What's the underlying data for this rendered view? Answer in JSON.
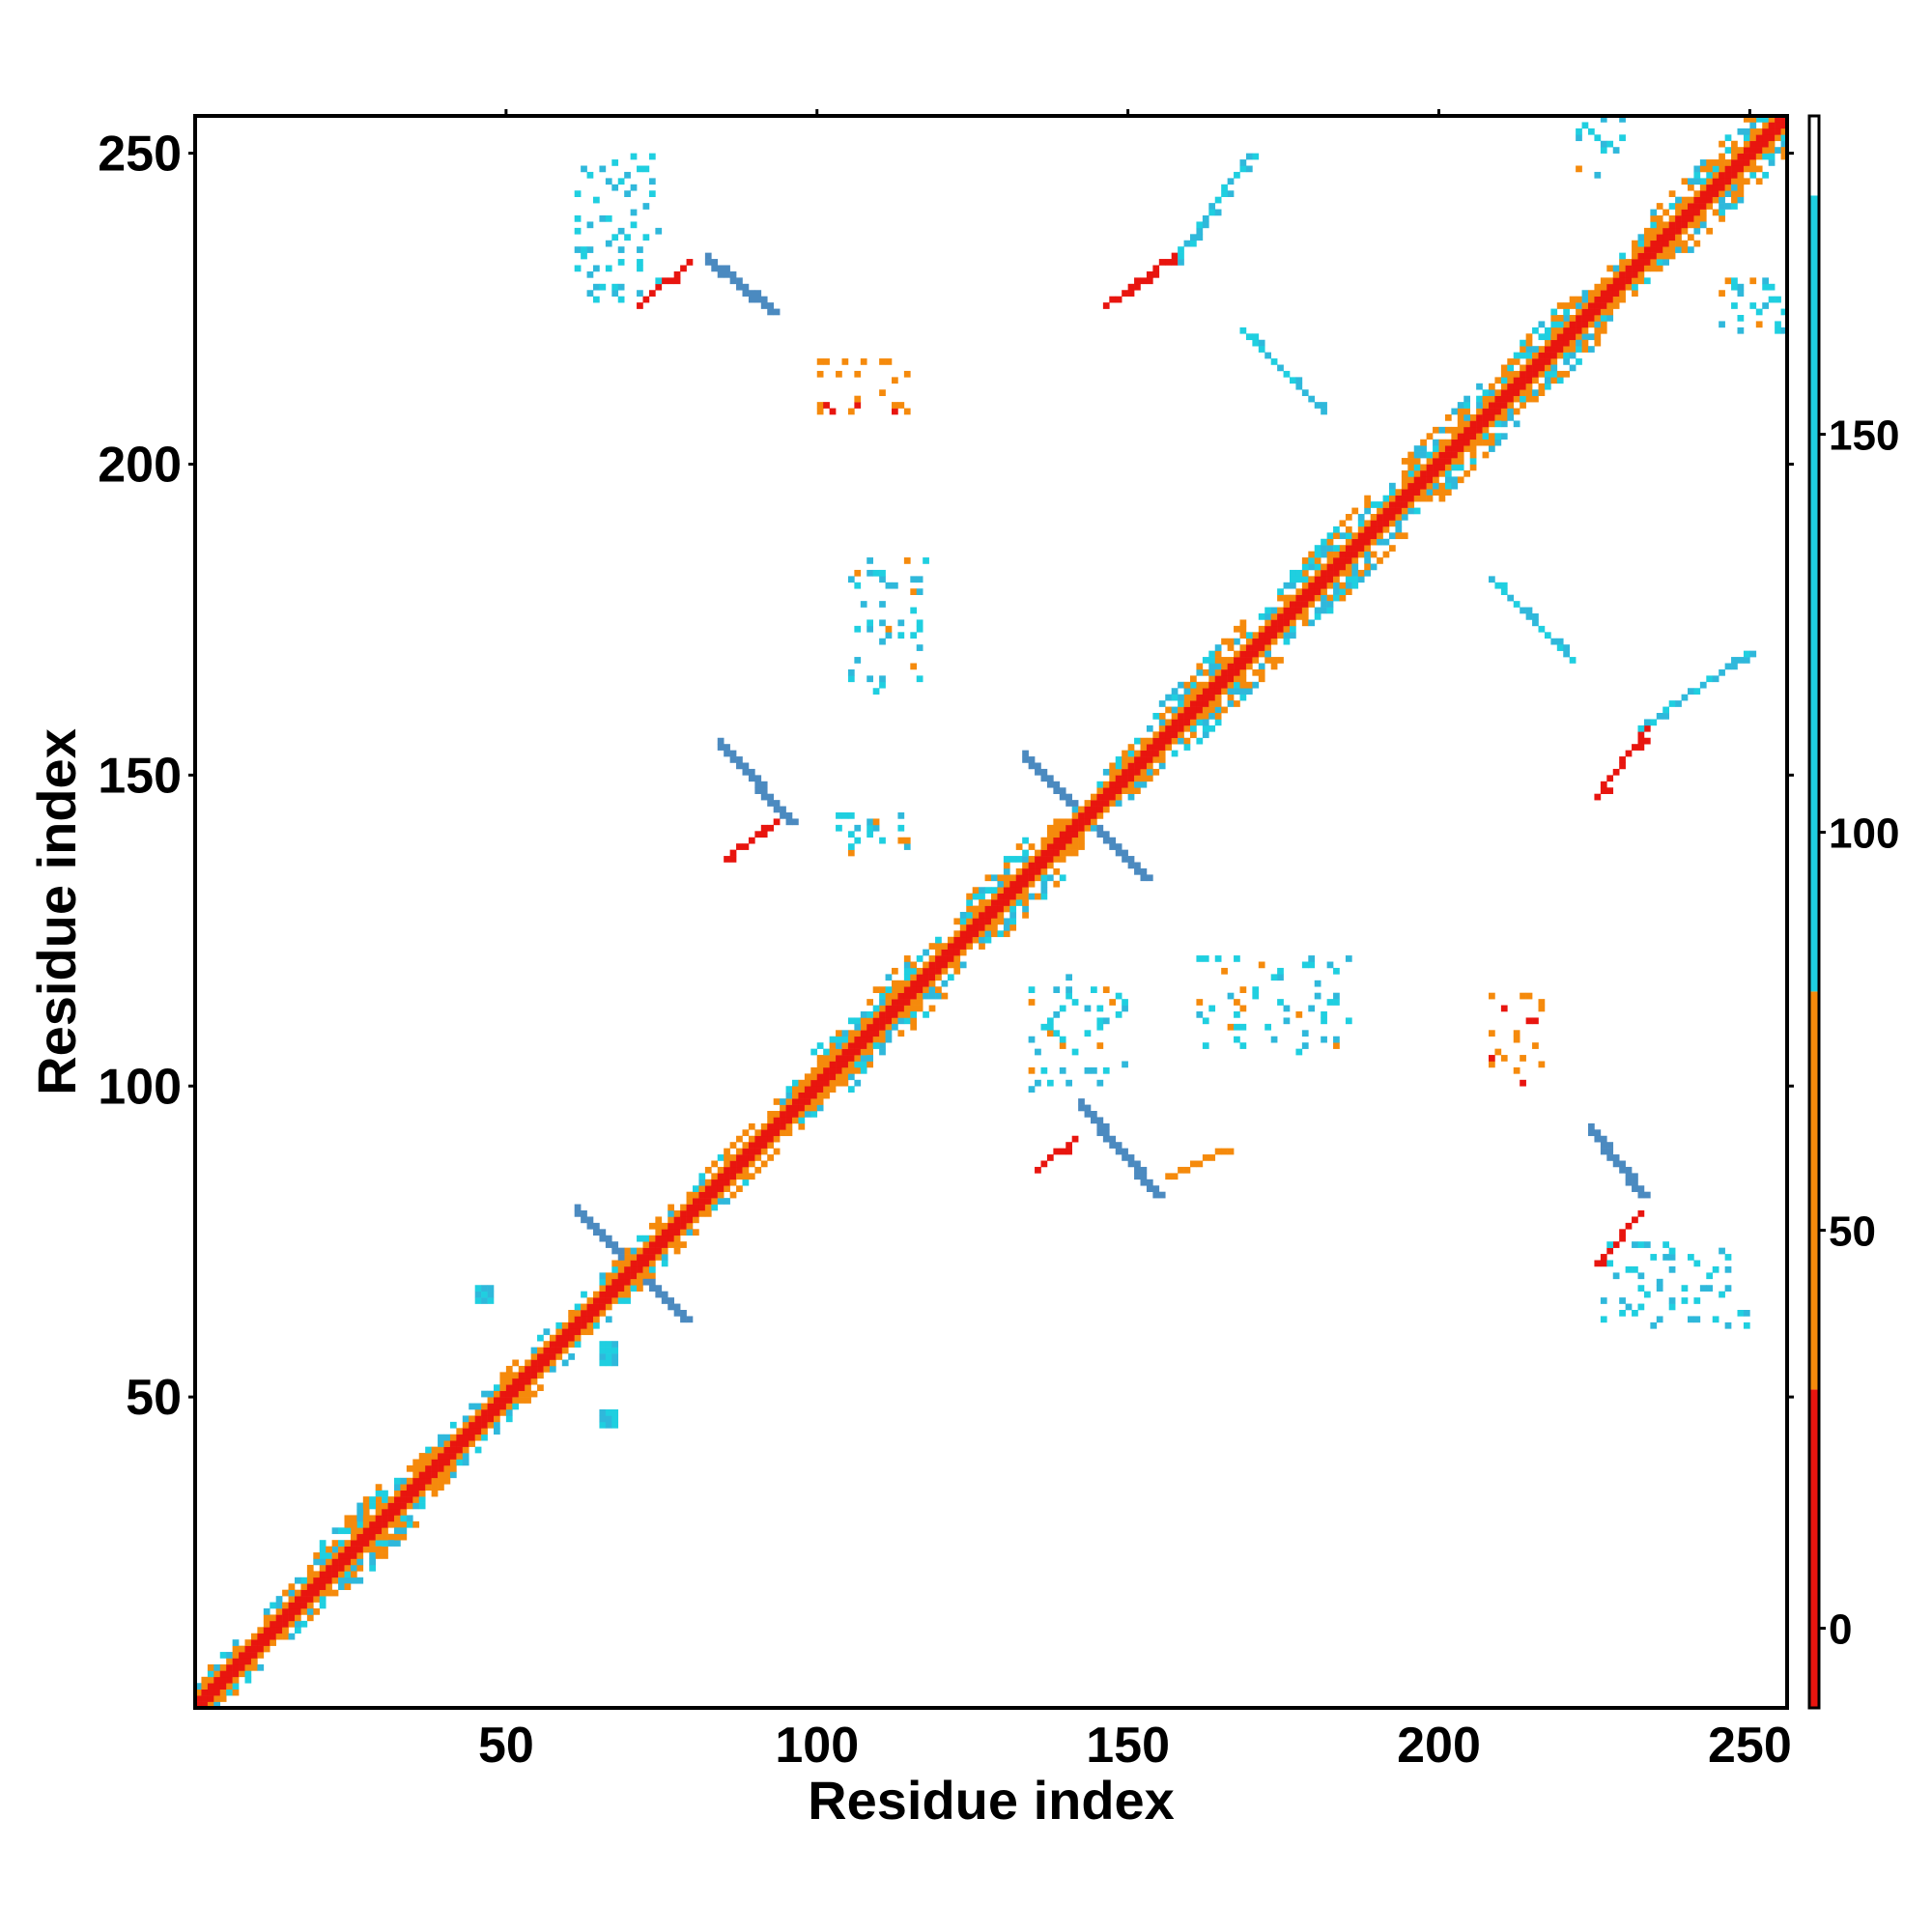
{
  "chart_data": {
    "type": "heatmap",
    "title": "",
    "xlabel": "Residue index",
    "ylabel": "Residue index",
    "xlim": [
      0,
      256
    ],
    "ylim": [
      0,
      256
    ],
    "x_ticks": [
      50,
      100,
      150,
      200,
      250
    ],
    "y_ticks": [
      50,
      100,
      150,
      200,
      250
    ],
    "grid": false,
    "symmetric": true,
    "colorbar": {
      "range": [
        -10,
        190
      ],
      "ticks": [
        0,
        50,
        100,
        150
      ],
      "segments": [
        {
          "from": -10,
          "to": 30,
          "color": "#e8150f"
        },
        {
          "from": 30,
          "to": 80,
          "color": "#f58a0c"
        },
        {
          "from": 80,
          "to": 180,
          "color": "#1fcfe0"
        },
        {
          "from": 180,
          "to": 190,
          "color": "#ffffff"
        }
      ]
    },
    "diagonal": {
      "from": 1,
      "to": 256
    },
    "lower_triangle_features": [
      {
        "kind": "block",
        "x": [
          46,
          48
        ],
        "y": [
          66,
          68
        ],
        "value": 115
      },
      {
        "kind": "block",
        "x": [
          66,
          68
        ],
        "y": [
          46,
          48
        ],
        "value": 115
      },
      {
        "kind": "block",
        "x": [
          66,
          68
        ],
        "y": [
          56,
          59
        ],
        "value": 110
      },
      {
        "kind": "strand_pair",
        "start": [
          62,
          80
        ],
        "end": [
          79,
          63
        ],
        "value": 160
      },
      {
        "kind": "strand_pair",
        "start": [
          85,
          155
        ],
        "end": [
          96,
          143
        ],
        "value": 160
      },
      {
        "kind": "strand_pair",
        "start": [
          143,
          97
        ],
        "end": [
          155,
          83
        ],
        "value": 160
      },
      {
        "kind": "strand_pair",
        "start": [
          134,
          153
        ],
        "end": [
          153,
          134
        ],
        "value": 160
      },
      {
        "kind": "strand_pair",
        "start": [
          225,
          93
        ],
        "end": [
          233,
          83
        ],
        "value": 160
      },
      {
        "kind": "diag_line",
        "start": [
          86,
          137
        ],
        "end": [
          95,
          144
        ],
        "value": 15
      },
      {
        "kind": "diag_line",
        "start": [
          136,
          87
        ],
        "end": [
          142,
          92
        ],
        "value": 15
      },
      {
        "kind": "diag_line",
        "start": [
          226,
          72
        ],
        "end": [
          233,
          80
        ],
        "value": 10
      },
      {
        "kind": "diag_line",
        "start": [
          157,
          86
        ],
        "end": [
          166,
          90
        ],
        "value": 50
      },
      {
        "kind": "cluster",
        "x": [
          106,
          118
        ],
        "y": [
          163,
          185
        ],
        "value": 105
      },
      {
        "kind": "cluster",
        "x": [
          162,
          186
        ],
        "y": [
          106,
          121
        ],
        "value": 105
      },
      {
        "kind": "cluster",
        "x": [
          135,
          150
        ],
        "y": [
          100,
          118
        ],
        "value": 100
      },
      {
        "kind": "cluster",
        "x": [
          104,
          116
        ],
        "y": [
          137,
          144
        ],
        "value": 100
      },
      {
        "kind": "cluster",
        "x": [
          209,
          217
        ],
        "y": [
          101,
          115
        ],
        "value": 30
      },
      {
        "kind": "cluster",
        "x": [
          227,
          250
        ],
        "y": [
          62,
          75
        ],
        "value": 120
      },
      {
        "kind": "diag_line",
        "start": [
          226,
          147
        ],
        "end": [
          234,
          158
        ],
        "value": 20
      },
      {
        "kind": "diag_line",
        "start": [
          233,
          158
        ],
        "end": [
          250,
          170
        ],
        "value": 90
      },
      {
        "kind": "diag_line",
        "start": [
          209,
          182
        ],
        "end": [
          222,
          169
        ],
        "value": 100
      }
    ],
    "upper_triangle_features": [
      {
        "kind": "diag_line",
        "start": [
          147,
          226
        ],
        "end": [
          158,
          234
        ],
        "value": 20
      },
      {
        "kind": "diag_line",
        "start": [
          158,
          233
        ],
        "end": [
          170,
          250
        ],
        "value": 90
      },
      {
        "kind": "diag_line",
        "start": [
          169,
          222
        ],
        "end": [
          182,
          209
        ],
        "value": 100
      },
      {
        "kind": "strand_pair",
        "start": [
          83,
          233
        ],
        "end": [
          93,
          225
        ],
        "value": 160
      },
      {
        "kind": "diag_line",
        "start": [
          72,
          226
        ],
        "end": [
          80,
          233
        ],
        "value": 10
      },
      {
        "kind": "cluster",
        "x": [
          62,
          75
        ],
        "y": [
          227,
          250
        ],
        "value": 120
      },
      {
        "kind": "cluster",
        "x": [
          101,
          115
        ],
        "y": [
          209,
          217
        ],
        "value": 30
      },
      {
        "kind": "cluster",
        "x": [
          222,
          230
        ],
        "y": [
          246,
          256
        ],
        "value": 100
      },
      {
        "kind": "cluster",
        "x": [
          246,
          256
        ],
        "y": [
          222,
          230
        ],
        "value": 100
      }
    ]
  }
}
